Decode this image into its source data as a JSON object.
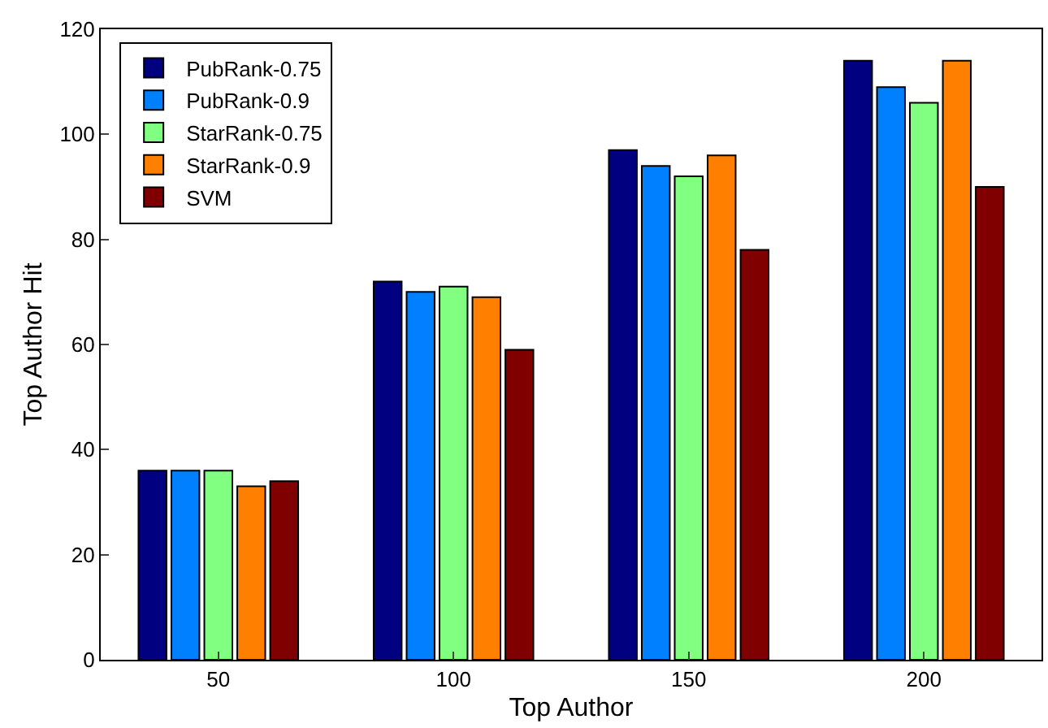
{
  "chart_data": {
    "type": "bar",
    "xlabel": "Top Author",
    "ylabel": "Top Author Hit",
    "categories": [
      "50",
      "100",
      "150",
      "200"
    ],
    "series": [
      {
        "name": "PubRank-0.75",
        "color": "#000080",
        "values": [
          36,
          72,
          97,
          114
        ]
      },
      {
        "name": "PubRank-0.9",
        "color": "#0080ff",
        "values": [
          36,
          70,
          94,
          109
        ]
      },
      {
        "name": "StarRank-0.75",
        "color": "#80ff80",
        "values": [
          36,
          71,
          92,
          106
        ]
      },
      {
        "name": "StarRank-0.9",
        "color": "#ff8000",
        "values": [
          33,
          69,
          96,
          114
        ]
      },
      {
        "name": "SVM",
        "color": "#800000",
        "values": [
          34,
          59,
          78,
          90
        ]
      }
    ],
    "ylim": [
      0,
      120
    ],
    "yticks": [
      0,
      20,
      40,
      60,
      80,
      100,
      120
    ],
    "grid": false,
    "legend": "top left"
  }
}
